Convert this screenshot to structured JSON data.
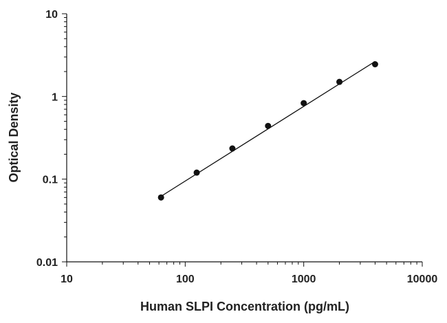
{
  "chart_data": {
    "type": "scatter",
    "title": "",
    "xlabel": "Human SLPI Concentration (pg/mL)",
    "ylabel": "Optical Density",
    "xscale": "log",
    "yscale": "log",
    "xlim": [
      10,
      10000
    ],
    "ylim": [
      0.01,
      10
    ],
    "x_ticks": [
      10,
      100,
      1000,
      10000
    ],
    "x_tick_labels": [
      "10",
      "100",
      "1000",
      "10000"
    ],
    "y_ticks": [
      0.01,
      0.1,
      1,
      10
    ],
    "y_tick_labels": [
      "0.01",
      "0.1",
      "1",
      "10"
    ],
    "grid": false,
    "legend": "none",
    "series": [
      {
        "x": [
          62.5,
          125,
          250,
          500,
          1000,
          2000,
          4000
        ],
        "y": [
          0.06,
          0.12,
          0.235,
          0.44,
          0.83,
          1.5,
          2.45
        ],
        "color": "#111111"
      }
    ],
    "fit_line": {
      "x": [
        62.5,
        4000
      ],
      "y": [
        0.062,
        2.65
      ],
      "color": "#111111"
    }
  }
}
